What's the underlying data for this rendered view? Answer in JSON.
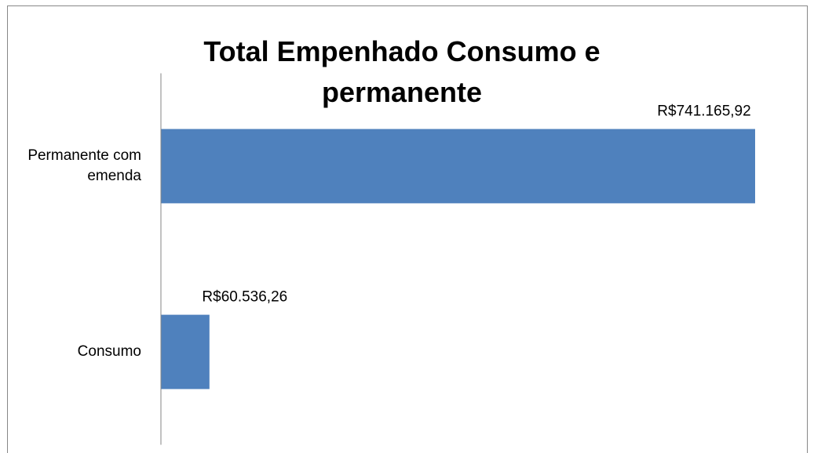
{
  "chart_data": {
    "type": "bar",
    "orientation": "horizontal",
    "title": "Total Empenhado Consumo e permanente",
    "categories": [
      "Permanente com emenda",
      "Consumo"
    ],
    "values": [
      741165.92,
      60536.26
    ],
    "value_labels": [
      "R$741.165,92",
      "R$60.536,26"
    ],
    "color": "#4f81bd"
  }
}
